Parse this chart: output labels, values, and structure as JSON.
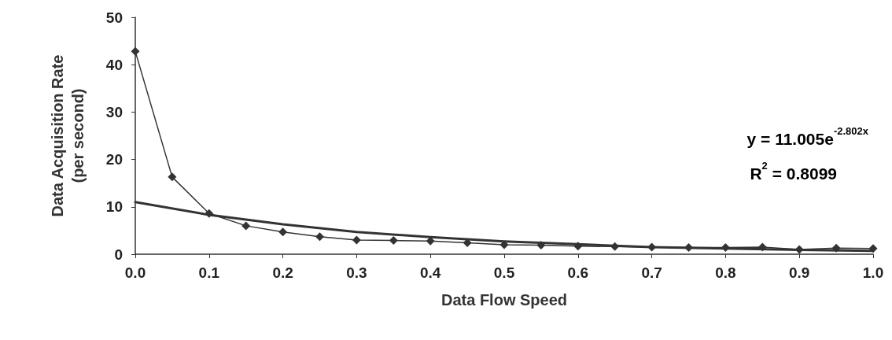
{
  "chart_data": {
    "type": "line",
    "xlabel": "Data Flow Speed",
    "ylabel": "Data Acquisition Rate\n(per second)",
    "annotations": [
      "y = 11.005e$^{-2.802x}$",
      "R$^{2}$ = 0.8099"
    ],
    "series": [
      {
        "color": "#333333",
        "marker": "diamond",
        "x": [
          0,
          0.05,
          0.1,
          0.15,
          0.2,
          0.25,
          0.3,
          0.35,
          0.4,
          0.45,
          0.5,
          0.55,
          0.6,
          0.65,
          0.7,
          0.75,
          0.8,
          0.85,
          0.9,
          0.95,
          1.0
        ],
        "values": [
          42.8,
          16.3,
          8.6,
          6.0,
          4.7,
          3.7,
          3.0,
          2.9,
          2.8,
          2.4,
          2.0,
          1.9,
          1.7,
          1.6,
          1.5,
          1.4,
          1.4,
          1.5,
          1.0,
          1.3,
          1.2
        ]
      },
      {
        "color": "#333333",
        "marker": "none",
        "x": [
          0,
          0.1,
          0.2,
          0.3,
          0.4,
          0.5,
          0.6,
          0.7,
          0.8,
          0.9,
          1.0
        ],
        "values": [
          11.0,
          8.3,
          6.3,
          4.7,
          3.6,
          2.7,
          2.1,
          1.5,
          1.2,
          0.9,
          0.7
        ]
      }
    ],
    "xlim": [
      0,
      1
    ],
    "xticks": [
      {
        "value": 0,
        "label": "0.0"
      },
      0.1,
      0.2,
      0.3,
      0.4,
      0.5,
      0.6,
      0.7,
      0.8,
      0.9,
      {
        "value": 1,
        "label": "1.0"
      }
    ],
    "ylim": [
      0,
      50
    ],
    "yticks": [
      0,
      10,
      20,
      30,
      40,
      50
    ]
  }
}
